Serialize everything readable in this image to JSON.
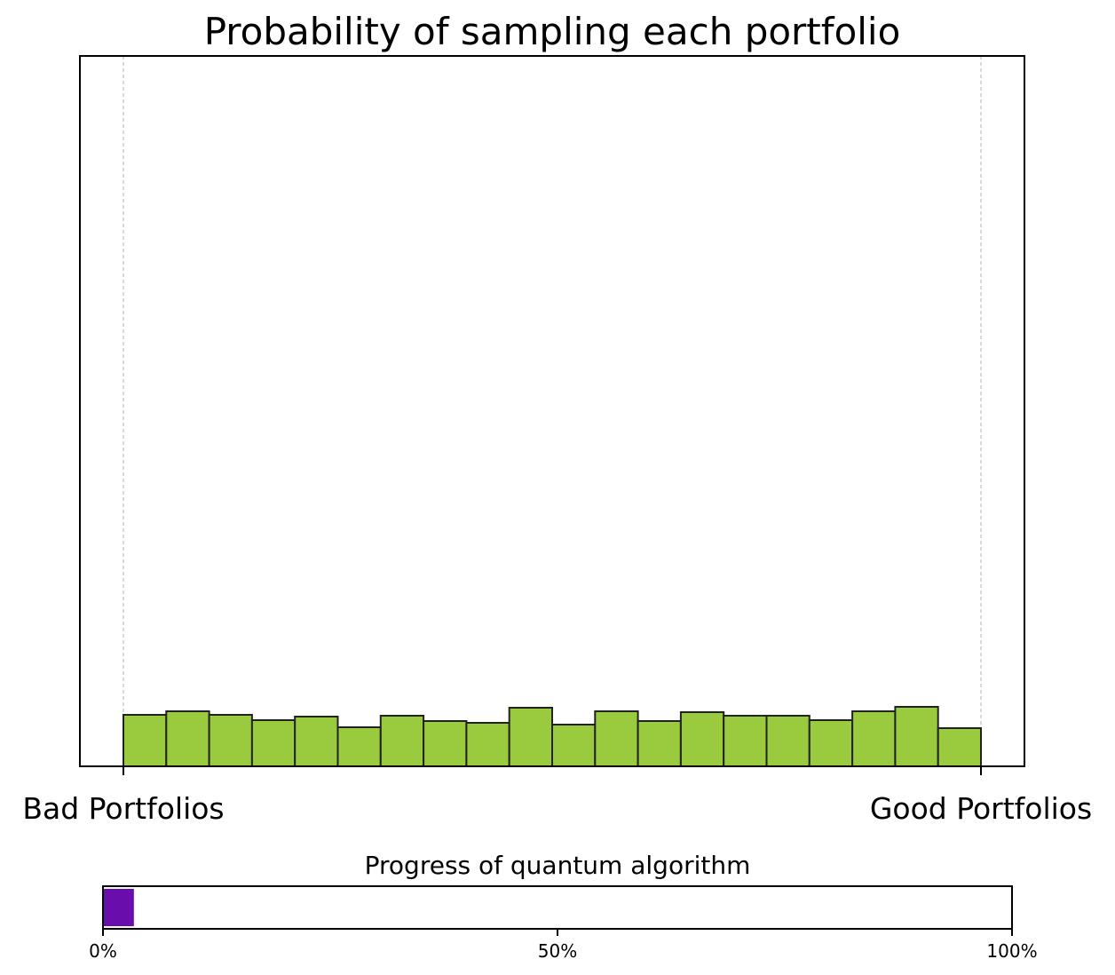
{
  "chart_data": [
    {
      "type": "bar",
      "title": "Probability of sampling each portfolio",
      "xlabel": "",
      "ylabel": "",
      "x_tick_labels": [
        "Bad Portfolios",
        "Good Portfolios"
      ],
      "bin_count": 20,
      "values": [
        58,
        62,
        58,
        52,
        56,
        44,
        57,
        51,
        49,
        66,
        47,
        62,
        51,
        61,
        57,
        57,
        52,
        62,
        67,
        43
      ],
      "ylim": [
        0,
        800
      ],
      "bar_color": "#9acb3e",
      "edge_color": "#222222",
      "grid": "vertical dashed at x ticks"
    },
    {
      "type": "bar",
      "title": "Progress of quantum algorithm",
      "orientation": "horizontal",
      "progress_percent": 3.4,
      "tick_labels": [
        "0%",
        "50%",
        "100%"
      ],
      "fill_color": "#6a0dad"
    }
  ]
}
